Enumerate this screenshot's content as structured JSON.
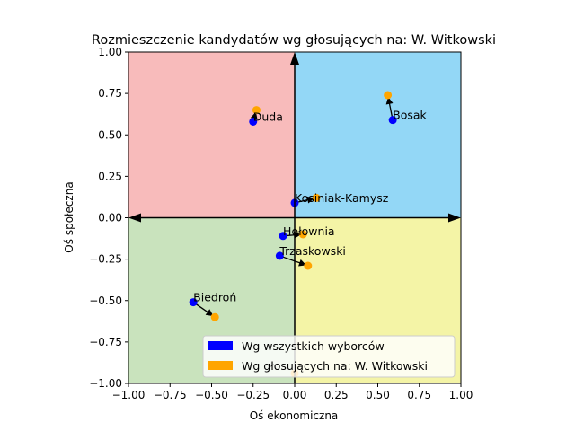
{
  "chart_data": {
    "type": "scatter",
    "title": "Rozmieszczenie kandydatów wg głosujących na: W. Witkowski",
    "xlabel": "Oś ekonomiczna",
    "ylabel": "Oś społeczna",
    "xlim": [
      -1.0,
      1.0
    ],
    "ylim": [
      -1.0,
      1.0
    ],
    "xticks": [
      "−1.00",
      "−0.75",
      "−0.50",
      "−0.25",
      "0.00",
      "0.25",
      "0.50",
      "0.75",
      "1.00"
    ],
    "yticks": [
      "−1.00",
      "−0.75",
      "−0.50",
      "−0.25",
      "0.00",
      "0.25",
      "0.50",
      "0.75",
      "1.00"
    ],
    "grid": false,
    "quadrants": [
      {
        "quadrant": "top-left",
        "color": "#f8bbbb"
      },
      {
        "quadrant": "top-right",
        "color": "#93d7f6"
      },
      {
        "quadrant": "bottom-left",
        "color": "#c9e3bd"
      },
      {
        "quadrant": "bottom-right",
        "color": "#f4f4a6"
      }
    ],
    "series": [
      {
        "name": "Wg wszystkich wyborców",
        "color": "#0000ff"
      },
      {
        "name": "Wg głosujących na: W. Witkowski",
        "color": "#ffa500"
      }
    ],
    "candidates": [
      {
        "label": "Duda",
        "all": [
          -0.25,
          0.58
        ],
        "voters": [
          -0.23,
          0.65
        ]
      },
      {
        "label": "Bosak",
        "all": [
          0.59,
          0.59
        ],
        "voters": [
          0.56,
          0.74
        ]
      },
      {
        "label": "Kosiniak-Kamysz",
        "all": [
          0.0,
          0.09
        ],
        "voters": [
          0.13,
          0.12
        ]
      },
      {
        "label": "Hołownia",
        "all": [
          -0.07,
          -0.11
        ],
        "voters": [
          0.05,
          -0.1
        ]
      },
      {
        "label": "Trzaskowski",
        "all": [
          -0.09,
          -0.23
        ],
        "voters": [
          0.08,
          -0.29
        ]
      },
      {
        "label": "Biedroń",
        "all": [
          -0.61,
          -0.51
        ],
        "voters": [
          -0.48,
          -0.6
        ]
      },
      {
        "label": "",
        "all": null,
        "voters": [
          0.0,
          -0.94
        ]
      }
    ],
    "legend_placement": "lower-right"
  }
}
